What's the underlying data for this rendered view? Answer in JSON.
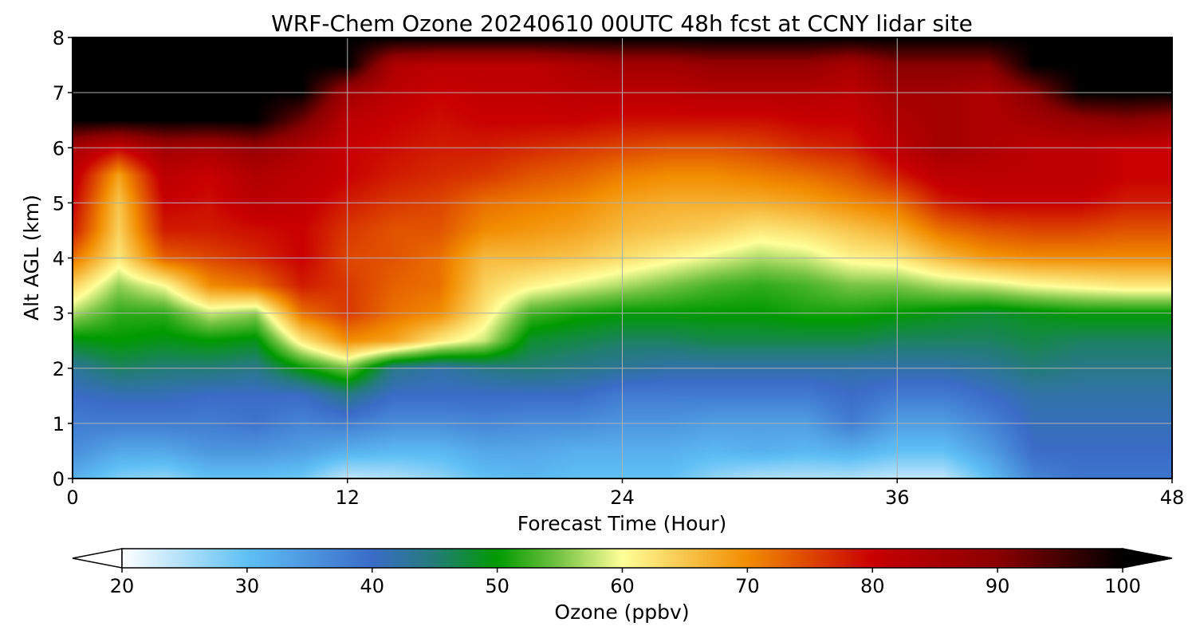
{
  "chart_data": {
    "type": "heatmap",
    "title": "WRF-Chem Ozone  20240610 00UTC 48h fcst at CCNY lidar site",
    "xlabel": "Forecast Time (Hour)",
    "ylabel": "Alt AGL (km)",
    "xlim": [
      0,
      48
    ],
    "ylim": [
      0,
      8
    ],
    "xticks": [
      0,
      12,
      24,
      36,
      48
    ],
    "yticks": [
      0,
      1,
      2,
      3,
      4,
      5,
      6,
      7,
      8
    ],
    "grid": true,
    "z_units": "ppbv",
    "z_range": [
      20,
      100
    ],
    "extend": "both",
    "colorbar": {
      "label": "Ozone  (ppbv)",
      "ticks": [
        20,
        30,
        40,
        50,
        60,
        70,
        80,
        90,
        100
      ],
      "stops": [
        {
          "value": 20,
          "color": "#ffffff"
        },
        {
          "value": 30,
          "color": "#5fc0f5"
        },
        {
          "value": 40,
          "color": "#3a6cc8"
        },
        {
          "value": 45,
          "color": "#237c78"
        },
        {
          "value": 50,
          "color": "#009a00"
        },
        {
          "value": 55,
          "color": "#77c445"
        },
        {
          "value": 60,
          "color": "#ffff99"
        },
        {
          "value": 70,
          "color": "#f28c00"
        },
        {
          "value": 80,
          "color": "#c80000"
        },
        {
          "value": 90,
          "color": "#8a0000"
        },
        {
          "value": 100,
          "color": "#000000"
        }
      ]
    },
    "profiles": {
      "hours": [
        0,
        2,
        4,
        6,
        8,
        10,
        12,
        14,
        16,
        18,
        20,
        22,
        24,
        26,
        28,
        30,
        32,
        34,
        36,
        38,
        40,
        42,
        44,
        46,
        48
      ],
      "altitudes_km": [
        0,
        0.5,
        1,
        1.5,
        2,
        2.5,
        3,
        3.5,
        4,
        4.5,
        5,
        5.5,
        6,
        6.5,
        7,
        7.5,
        8
      ],
      "ozone_ppbv": [
        [
          32,
          36,
          38,
          40,
          43,
          49,
          57,
          64,
          72,
          78,
          80,
          82,
          85,
          100,
          100,
          100,
          100
        ],
        [
          28,
          33,
          38,
          41,
          46,
          50,
          52,
          56,
          62,
          64,
          65,
          68,
          80,
          100,
          100,
          100,
          100
        ],
        [
          27,
          33,
          38,
          41,
          45,
          49,
          52,
          60,
          73,
          78,
          80,
          82,
          86,
          100,
          100,
          100,
          100
        ],
        [
          30,
          35,
          38,
          40,
          45,
          50,
          58,
          70,
          75,
          78,
          79,
          80,
          85,
          100,
          100,
          100,
          100
        ],
        [
          30,
          35,
          39,
          40,
          44,
          49,
          56,
          72,
          77,
          79,
          82,
          84,
          88,
          100,
          100,
          100,
          100
        ],
        [
          29,
          34,
          37,
          40,
          50,
          62,
          72,
          78,
          80,
          80,
          81,
          82,
          84,
          92,
          100,
          100,
          100
        ],
        [
          24,
          32,
          38,
          44,
          55,
          70,
          76,
          76,
          75,
          76,
          78,
          80,
          80,
          82,
          86,
          100,
          100
        ],
        [
          25,
          31,
          36,
          40,
          44,
          68,
          72,
          73,
          74,
          74,
          76,
          78,
          79,
          80,
          82,
          84,
          100
        ],
        [
          27,
          31,
          36,
          40,
          42,
          62,
          70,
          72,
          72,
          74,
          75,
          77,
          78,
          79,
          80,
          82,
          100
        ],
        [
          30,
          33,
          37,
          40,
          44,
          58,
          62,
          64,
          66,
          70,
          72,
          76,
          78,
          80,
          81,
          82,
          100
        ],
        [
          31,
          33,
          36,
          40,
          45,
          48,
          53,
          61,
          66,
          69,
          71,
          74,
          77,
          80,
          81,
          82,
          100
        ],
        [
          30,
          32,
          36,
          40,
          44,
          47,
          51,
          59,
          65,
          68,
          70,
          73,
          76,
          80,
          82,
          84,
          100
        ],
        [
          30,
          32,
          35,
          38,
          43,
          46,
          50,
          57,
          63,
          66,
          68,
          71,
          75,
          79,
          82,
          86,
          100
        ],
        [
          30,
          32,
          35,
          38,
          42,
          46,
          50,
          55,
          61,
          65,
          67,
          70,
          74,
          79,
          82,
          86,
          100
        ],
        [
          27,
          31,
          34,
          38,
          42,
          47,
          50,
          53,
          59,
          64,
          67,
          70,
          74,
          79,
          83,
          88,
          100
        ],
        [
          25,
          32,
          34,
          38,
          42,
          47,
          50,
          52,
          57,
          62,
          67,
          71,
          75,
          79,
          83,
          88,
          100
        ],
        [
          25,
          31,
          34,
          38,
          42,
          47,
          51,
          53,
          58,
          63,
          68,
          72,
          77,
          80,
          83,
          88,
          100
        ],
        [
          25,
          32,
          38,
          40,
          42,
          47,
          51,
          55,
          61,
          65,
          70,
          74,
          78,
          80,
          82,
          85,
          100
        ],
        [
          24,
          30,
          34,
          38,
          42,
          46,
          50,
          55,
          62,
          67,
          72,
          78,
          82,
          84,
          86,
          90,
          100
        ],
        [
          24,
          30,
          34,
          38,
          42,
          46,
          49,
          57,
          66,
          72,
          78,
          82,
          86,
          86,
          86,
          90,
          100
        ],
        [
          30,
          34,
          37,
          40,
          43,
          46,
          48,
          58,
          69,
          74,
          80,
          82,
          84,
          84,
          84,
          90,
          100
        ],
        [
          37,
          40,
          41,
          42,
          45,
          47,
          49,
          60,
          70,
          75,
          80,
          82,
          82,
          86,
          90,
          100,
          100
        ],
        [
          39,
          40,
          41,
          42,
          44,
          46,
          50,
          61,
          70,
          75,
          80,
          82,
          82,
          88,
          100,
          100,
          100
        ],
        [
          39,
          40,
          41,
          42,
          44,
          46,
          50,
          62,
          70,
          74,
          78,
          80,
          80,
          90,
          100,
          100,
          100
        ],
        [
          39,
          40,
          41,
          42,
          44,
          46,
          50,
          62,
          70,
          74,
          78,
          80,
          80,
          88,
          100,
          100,
          100
        ]
      ]
    }
  }
}
